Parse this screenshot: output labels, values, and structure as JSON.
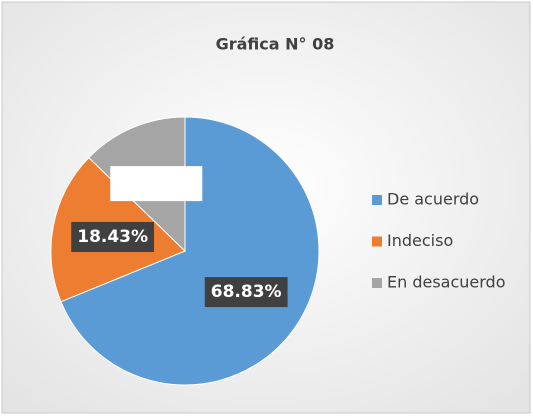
{
  "chart_data": {
    "type": "pie",
    "title": "Gráfica N° 08",
    "categories": [
      "De acuerdo",
      "Indeciso",
      "En desacuerdo"
    ],
    "values": [
      68.83,
      18.43,
      12.74
    ],
    "value_labels": [
      "68.83%",
      "18.43%",
      null
    ],
    "colors": [
      "#5b9bd5",
      "#ed7d31",
      "#a5a5a5"
    ],
    "legend": "right"
  }
}
